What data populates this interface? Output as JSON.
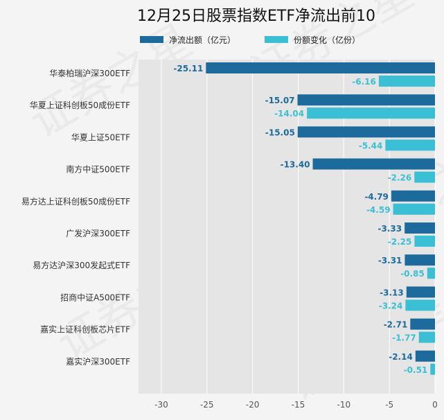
{
  "chart_data": {
    "type": "bar",
    "orientation": "horizontal",
    "title": "12月25日股票指数ETF净流出前10",
    "categories": [
      "华泰柏瑞沪深300ETF",
      "华夏上证科创板50成份ETF",
      "华夏上证50ETF",
      "南方中证500ETF",
      "易方达上证科创板50成份ETF",
      "广发沪深300ETF",
      "易方达沪深300发起式ETF",
      "招商中证A500ETF",
      "嘉实上证科创板芯片ETF",
      "嘉实沪深300ETF"
    ],
    "series": [
      {
        "name": "净流出额（亿元）",
        "color": "#1c6b9c",
        "values": [
          -25.11,
          -15.07,
          -15.05,
          -13.4,
          -4.79,
          -3.33,
          -3.31,
          -3.13,
          -2.71,
          -2.14
        ],
        "labels": [
          "-25.11",
          "-15.07",
          "-15.05",
          "-13.40",
          "-4.79",
          "-3.33",
          "-3.31",
          "-3.13",
          "-2.71",
          "-2.14"
        ]
      },
      {
        "name": "份额变化（亿份）",
        "color": "#3bbfd4",
        "values": [
          -6.16,
          -14.04,
          -5.44,
          -2.26,
          -4.59,
          -2.25,
          -0.85,
          -3.24,
          -1.77,
          -0.51
        ],
        "labels": [
          "-6.16",
          "-14.04",
          "-5.44",
          "-2.26",
          "-4.59",
          "-2.25",
          "-0.85",
          "-3.24",
          "-1.77",
          "-0.51"
        ]
      }
    ],
    "xlim": [
      -32.5,
      0
    ],
    "xticks": [
      -30,
      -25,
      -20,
      -15,
      -10,
      -5,
      0
    ],
    "xtick_labels": [
      "-30",
      "-25",
      "-20",
      "-15",
      "-10",
      "-5",
      "0"
    ],
    "grid": "vertical",
    "legend_position": "top",
    "plot_background": "#e5e5e5",
    "watermark": "证券之星"
  }
}
